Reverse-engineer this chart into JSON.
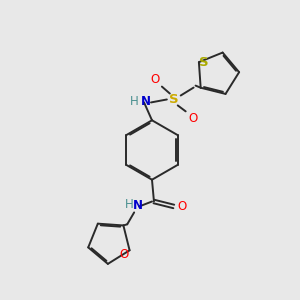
{
  "bg_color": "#e8e8e8",
  "bond_color": "#2a2a2a",
  "bond_width": 1.4,
  "colors": {
    "N": "#0000cc",
    "H": "#4a9090",
    "O": "#ff0000",
    "S_sulfonyl": "#ccaa00",
    "S_thio": "#aaaa00",
    "C": "#2a2a2a"
  },
  "font_size": 8.5
}
